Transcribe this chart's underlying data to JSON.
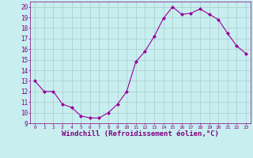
{
  "x": [
    0,
    1,
    2,
    3,
    4,
    5,
    6,
    7,
    8,
    9,
    10,
    11,
    12,
    13,
    14,
    15,
    16,
    17,
    18,
    19,
    20,
    21,
    22,
    23
  ],
  "y": [
    13.0,
    12.0,
    12.0,
    10.8,
    10.5,
    9.7,
    9.5,
    9.5,
    10.0,
    10.8,
    12.0,
    14.8,
    15.8,
    17.2,
    18.9,
    20.0,
    19.3,
    19.4,
    19.8,
    19.3,
    18.8,
    17.5,
    16.3,
    15.6
  ],
  "line_color": "#990099",
  "marker": "D",
  "marker_size": 2,
  "bg_color": "#c8eef0",
  "grid_color": "#aacccc",
  "xlabel": "Windchill (Refroidissement éolien,°C)",
  "xlabel_fontsize": 6.5,
  "xlabel_color": "#800080",
  "tick_color": "#800080",
  "ylim": [
    9,
    20.5
  ],
  "xlim": [
    -0.5,
    23.5
  ],
  "yticks": [
    9,
    10,
    11,
    12,
    13,
    14,
    15,
    16,
    17,
    18,
    19,
    20
  ],
  "xticks": [
    0,
    1,
    2,
    3,
    4,
    5,
    6,
    7,
    8,
    9,
    10,
    11,
    12,
    13,
    14,
    15,
    16,
    17,
    18,
    19,
    20,
    21,
    22,
    23
  ]
}
